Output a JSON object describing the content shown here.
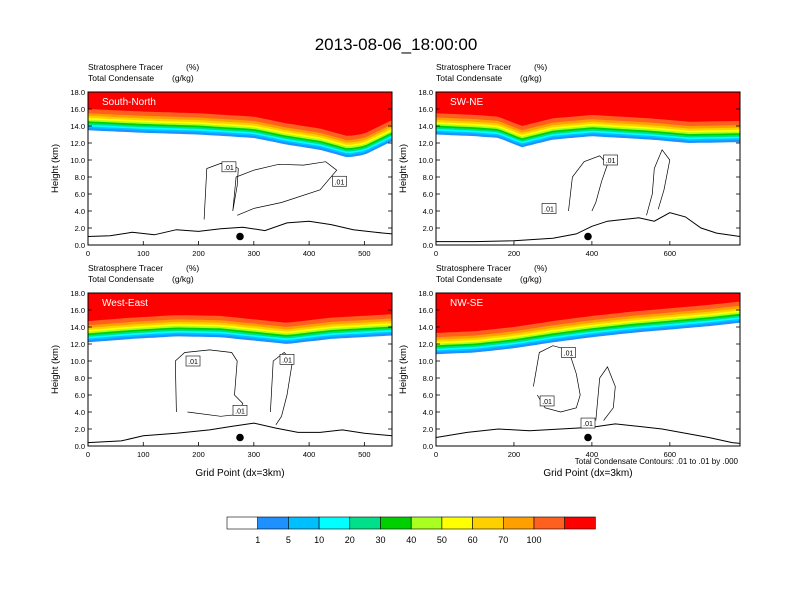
{
  "title": "2013-08-06_18:00:00",
  "colors": {
    "scale": [
      "#ffffff",
      "#1e90ff",
      "#00bfff",
      "#00ffff",
      "#00e08a",
      "#00d000",
      "#a8ff20",
      "#ffff00",
      "#ffd000",
      "#ffa000",
      "#ff6020",
      "#ff0000"
    ],
    "background": "#ffffff",
    "axis": "#000000"
  },
  "chart_data": [
    {
      "type": "heatmap",
      "panel_label": "South-North",
      "subtitle_left1": "Stratosphere Tracer",
      "subtitle_unit1": "(%)",
      "subtitle_left2": "Total Condensate",
      "subtitle_unit2": "(g/kg)",
      "ylabel": "Height (km)",
      "xlabel": "",
      "xlim": [
        0,
        550
      ],
      "ylim": [
        0,
        18
      ],
      "xticks": [
        0,
        100,
        200,
        300,
        400,
        500
      ],
      "yticks": [
        "0.0",
        "2.0",
        "4.0",
        "6.0",
        "8.0",
        "10.0",
        "12.0",
        "14.0",
        "16.0",
        "18.0"
      ],
      "tracer_base": [
        [
          0,
          13.5
        ],
        [
          100,
          13.2
        ],
        [
          200,
          13.0
        ],
        [
          300,
          12.6
        ],
        [
          360,
          11.8
        ],
        [
          420,
          11.2
        ],
        [
          470,
          10.3
        ],
        [
          500,
          10.6
        ],
        [
          550,
          12.2
        ]
      ],
      "terrain": [
        [
          0,
          1.0
        ],
        [
          40,
          1.1
        ],
        [
          80,
          1.5
        ],
        [
          120,
          1.2
        ],
        [
          160,
          1.8
        ],
        [
          200,
          1.6
        ],
        [
          240,
          1.9
        ],
        [
          280,
          2.1
        ],
        [
          320,
          1.7
        ],
        [
          360,
          2.6
        ],
        [
          400,
          2.8
        ],
        [
          440,
          2.4
        ],
        [
          480,
          1.8
        ],
        [
          520,
          1.5
        ],
        [
          550,
          1.3
        ]
      ],
      "contour_labels": [
        {
          "x": 255,
          "y": 9.2,
          "text": ".01"
        },
        {
          "x": 455,
          "y": 7.5,
          "text": ".01"
        }
      ],
      "contours": [
        [
          [
            210,
            3
          ],
          [
            215,
            9
          ],
          [
            240,
            9.6
          ],
          [
            260,
            9.5
          ],
          [
            272,
            9.0
          ],
          [
            270,
            7
          ],
          [
            262,
            4
          ],
          [
            268,
            8
          ],
          [
            300,
            8.8
          ],
          [
            345,
            9.5
          ],
          [
            390,
            9.4
          ],
          [
            430,
            9.8
          ],
          [
            450,
            8.8
          ],
          [
            420,
            6.5
          ],
          [
            350,
            5
          ],
          [
            300,
            4.3
          ],
          [
            270,
            3.5
          ]
        ]
      ],
      "marker_x": 275,
      "marker_y": 1.0
    },
    {
      "type": "heatmap",
      "panel_label": "SW-NE",
      "subtitle_left1": "Stratosphere Tracer",
      "subtitle_unit1": "(%)",
      "subtitle_left2": "Total Condensate",
      "subtitle_unit2": "(g/kg)",
      "ylabel": "Height (km)",
      "xlabel": "",
      "xlim": [
        0,
        780
      ],
      "ylim": [
        0,
        18
      ],
      "xticks": [
        0,
        200,
        400,
        600
      ],
      "yticks": [
        "0.0",
        "2.0",
        "4.0",
        "6.0",
        "8.0",
        "10.0",
        "12.0",
        "14.0",
        "16.0",
        "18.0"
      ],
      "tracer_base": [
        [
          0,
          13.0
        ],
        [
          100,
          12.8
        ],
        [
          160,
          12.6
        ],
        [
          220,
          11.5
        ],
        [
          300,
          12.4
        ],
        [
          400,
          12.8
        ],
        [
          550,
          12.4
        ],
        [
          650,
          12.0
        ],
        [
          780,
          12.1
        ]
      ],
      "terrain": [
        [
          0,
          0.4
        ],
        [
          100,
          0.4
        ],
        [
          200,
          0.5
        ],
        [
          300,
          0.8
        ],
        [
          360,
          1.3
        ],
        [
          400,
          2.2
        ],
        [
          440,
          2.8
        ],
        [
          480,
          3.0
        ],
        [
          520,
          3.2
        ],
        [
          560,
          2.8
        ],
        [
          600,
          3.8
        ],
        [
          640,
          3.3
        ],
        [
          680,
          2.0
        ],
        [
          720,
          1.4
        ],
        [
          780,
          1.0
        ]
      ],
      "contour_labels": [
        {
          "x": 448,
          "y": 10.0,
          "text": ".01"
        },
        {
          "x": 290,
          "y": 4.3,
          "text": ".01"
        }
      ],
      "contours": [
        [
          [
            340,
            4
          ],
          [
            350,
            8
          ],
          [
            380,
            9.8
          ],
          [
            420,
            10.5
          ],
          [
            440,
            9.5
          ],
          [
            425,
            7.5
          ],
          [
            410,
            5
          ],
          [
            400,
            4
          ]
        ],
        [
          [
            540,
            3.5
          ],
          [
            555,
            6
          ],
          [
            560,
            9
          ],
          [
            580,
            11.2
          ],
          [
            600,
            10
          ],
          [
            585,
            6.5
          ],
          [
            570,
            4.2
          ]
        ]
      ],
      "marker_x": 390,
      "marker_y": 1.0
    },
    {
      "type": "heatmap",
      "panel_label": "West-East",
      "subtitle_left1": "Stratosphere Tracer",
      "subtitle_unit1": "(%)",
      "subtitle_left2": "Total Condensate",
      "subtitle_unit2": "(g/kg)",
      "ylabel": "Height (km)",
      "xlabel": "Grid Point (dx=3km)",
      "xlim": [
        0,
        550
      ],
      "ylim": [
        0,
        18
      ],
      "xticks": [
        0,
        100,
        200,
        300,
        400,
        500
      ],
      "yticks": [
        "0.0",
        "2.0",
        "4.0",
        "6.0",
        "8.0",
        "10.0",
        "12.0",
        "14.0",
        "16.0",
        "18.0"
      ],
      "tracer_base": [
        [
          0,
          12.2
        ],
        [
          80,
          12.6
        ],
        [
          160,
          12.9
        ],
        [
          240,
          12.8
        ],
        [
          300,
          12.4
        ],
        [
          360,
          12.0
        ],
        [
          440,
          12.6
        ],
        [
          550,
          13.0
        ]
      ],
      "terrain": [
        [
          0,
          0.4
        ],
        [
          60,
          0.6
        ],
        [
          100,
          1.2
        ],
        [
          160,
          1.5
        ],
        [
          220,
          1.9
        ],
        [
          260,
          2.3
        ],
        [
          300,
          2.7
        ],
        [
          340,
          2.1
        ],
        [
          380,
          1.6
        ],
        [
          420,
          1.6
        ],
        [
          460,
          1.9
        ],
        [
          500,
          1.5
        ],
        [
          550,
          1.2
        ]
      ],
      "contour_labels": [
        {
          "x": 190,
          "y": 10.0,
          "text": ".01"
        },
        {
          "x": 360,
          "y": 10.2,
          "text": ".01"
        },
        {
          "x": 275,
          "y": 4.2,
          "text": ".01"
        }
      ],
      "contours": [
        [
          [
            160,
            4
          ],
          [
            158,
            10
          ],
          [
            175,
            11
          ],
          [
            220,
            11.3
          ],
          [
            260,
            11
          ],
          [
            270,
            10
          ],
          [
            265,
            6
          ],
          [
            280,
            5
          ],
          [
            270,
            3.7
          ],
          [
            240,
            3.5
          ],
          [
            180,
            4
          ]
        ],
        [
          [
            330,
            4
          ],
          [
            335,
            10
          ],
          [
            355,
            11
          ],
          [
            370,
            10
          ],
          [
            360,
            6
          ],
          [
            350,
            3.5
          ],
          [
            340,
            2.5
          ]
        ]
      ],
      "marker_x": 275,
      "marker_y": 1.0
    },
    {
      "type": "heatmap",
      "panel_label": "NW-SE",
      "subtitle_left1": "Stratosphere Tracer",
      "subtitle_unit1": "(%)",
      "subtitle_left2": "Total Condensate",
      "subtitle_unit2": "(g/kg)",
      "ylabel": "Height (km)",
      "xlabel": "Grid Point (dx=3km)",
      "xlim": [
        0,
        780
      ],
      "ylim": [
        0,
        18
      ],
      "xticks": [
        0,
        200,
        400,
        600
      ],
      "yticks": [
        "0.0",
        "2.0",
        "4.0",
        "6.0",
        "8.0",
        "10.0",
        "12.0",
        "14.0",
        "16.0",
        "18.0"
      ],
      "tracer_base": [
        [
          0,
          10.8
        ],
        [
          100,
          11.0
        ],
        [
          200,
          11.5
        ],
        [
          300,
          12.2
        ],
        [
          400,
          12.8
        ],
        [
          500,
          13.3
        ],
        [
          600,
          13.7
        ],
        [
          700,
          14.1
        ],
        [
          780,
          14.5
        ]
      ],
      "terrain": [
        [
          0,
          1.0
        ],
        [
          80,
          1.6
        ],
        [
          160,
          2.0
        ],
        [
          240,
          1.8
        ],
        [
          320,
          2.0
        ],
        [
          400,
          2.2
        ],
        [
          460,
          2.6
        ],
        [
          520,
          2.3
        ],
        [
          580,
          2.0
        ],
        [
          640,
          1.5
        ],
        [
          700,
          1.0
        ],
        [
          760,
          0.4
        ],
        [
          780,
          0.3
        ]
      ],
      "contour_labels": [
        {
          "x": 340,
          "y": 11.0,
          "text": ".01"
        },
        {
          "x": 285,
          "y": 5.3,
          "text": ".01"
        },
        {
          "x": 390,
          "y": 2.7,
          "text": ".01"
        }
      ],
      "contours": [
        [
          [
            250,
            7
          ],
          [
            265,
            11
          ],
          [
            300,
            11.8
          ],
          [
            340,
            11.3
          ],
          [
            360,
            8.5
          ],
          [
            370,
            6
          ],
          [
            360,
            4.5
          ],
          [
            320,
            4
          ],
          [
            280,
            4.5
          ],
          [
            260,
            6
          ]
        ],
        [
          [
            410,
            3
          ],
          [
            420,
            8
          ],
          [
            440,
            9.3
          ],
          [
            460,
            7
          ],
          [
            455,
            4.5
          ],
          [
            430,
            3
          ]
        ]
      ],
      "marker_x": 390,
      "marker_y": 1.0
    }
  ],
  "colorbar": {
    "labels": [
      "1",
      "5",
      "10",
      "20",
      "30",
      "40",
      "50",
      "60",
      "70",
      "100"
    ]
  },
  "footnote": "Total Condensate Contours: .01 to .01 by .000"
}
